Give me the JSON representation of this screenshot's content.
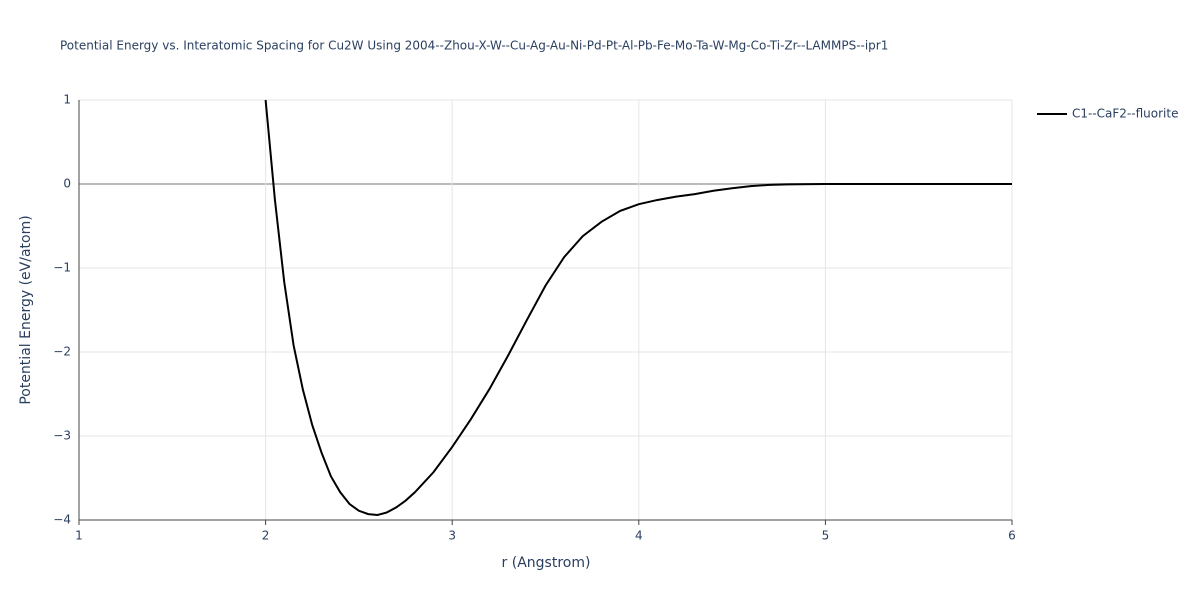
{
  "chart_data": {
    "type": "line",
    "title": "Potential Energy vs. Interatomic Spacing for Cu2W Using 2004--Zhou-X-W--Cu-Ag-Au-Ni-Pd-Pt-Al-Pb-Fe-Mo-Ta-W-Mg-Co-Ti-Zr--LAMMPS--ipr1",
    "x_label": "r (Angstrom)",
    "y_label": "Potential Energy (eV/atom)",
    "x": [
      2.0,
      2.05,
      2.1,
      2.15,
      2.2,
      2.25,
      2.3,
      2.35,
      2.4,
      2.45,
      2.5,
      2.55,
      2.6,
      2.65,
      2.7,
      2.75,
      2.8,
      2.9,
      3.0,
      3.1,
      3.2,
      3.3,
      3.4,
      3.5,
      3.6,
      3.7,
      3.8,
      3.9,
      4.0,
      4.1,
      4.2,
      4.3,
      4.4,
      4.5,
      4.6,
      4.7,
      4.8,
      5.0,
      6.0
    ],
    "series": [
      {
        "name": "C1--CaF2--fluorite",
        "color": "#000000",
        "values": [
          1.0,
          -0.19,
          -1.17,
          -1.92,
          -2.45,
          -2.87,
          -3.2,
          -3.48,
          -3.67,
          -3.81,
          -3.89,
          -3.93,
          -3.94,
          -3.91,
          -3.85,
          -3.77,
          -3.67,
          -3.43,
          -3.13,
          -2.8,
          -2.44,
          -2.04,
          -1.62,
          -1.21,
          -0.87,
          -0.62,
          -0.45,
          -0.32,
          -0.24,
          -0.19,
          -0.15,
          -0.12,
          -0.08,
          -0.05,
          -0.025,
          -0.01,
          -0.005,
          0,
          0
        ]
      }
    ],
    "xlim": [
      1,
      6
    ],
    "xticks": [
      1,
      2,
      3,
      4,
      5,
      6
    ],
    "ylim": [
      -4,
      1
    ],
    "yticks": [
      {
        "value": -4,
        "label": "−4"
      },
      {
        "value": -3,
        "label": "−3"
      },
      {
        "value": -2,
        "label": "−2"
      },
      {
        "value": -1,
        "label": "−1"
      },
      0,
      1
    ],
    "grid": true,
    "legend": "right"
  }
}
